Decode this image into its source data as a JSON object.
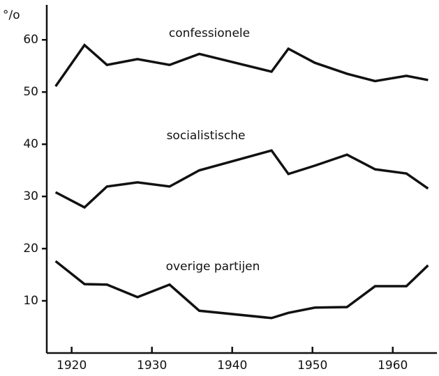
{
  "chart_data": {
    "type": "line",
    "y_label": "°/o",
    "x": [
      1918,
      1921.6,
      1924.4,
      1928.2,
      1932.2,
      1935.9,
      1944.9,
      1947,
      1950.3,
      1954.3,
      1957.8,
      1961.7,
      1964.4
    ],
    "series": [
      {
        "name": "confessionele",
        "color": "#111111",
        "values": [
          51.1,
          59,
          55.2,
          56.3,
          55.2,
          57.3,
          53.9,
          58.3,
          55.6,
          53.5,
          52.1,
          53.1,
          52.3
        ]
      },
      {
        "name": "socialistische",
        "color": "#111111",
        "values": [
          30.8,
          27.9,
          31.9,
          32.7,
          31.9,
          35,
          38.8,
          34.3,
          35.9,
          38,
          35.2,
          34.4,
          31.5
        ]
      },
      {
        "name": "overige partijen",
        "color": "#111111",
        "values": [
          17.6,
          13.2,
          13.1,
          10.7,
          13.1,
          8.1,
          6.7,
          7.7,
          8.7,
          8.8,
          12.8,
          12.8,
          16.8
        ]
      }
    ],
    "xlim": [
      1916.9,
      1965.5
    ],
    "xticks": [
      1920,
      1930,
      1940,
      1950,
      1960
    ],
    "ylim": [
      0,
      66.7
    ],
    "yticks": [
      10,
      20,
      30,
      40,
      50,
      60
    ],
    "grid": false
  }
}
